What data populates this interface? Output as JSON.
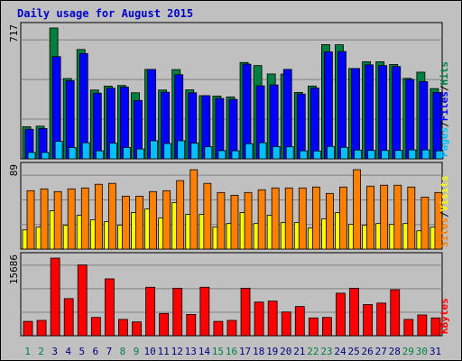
{
  "title": "Daily usage for August 2015",
  "colors": {
    "hits": "#008040",
    "files": "#0000ff",
    "pages": "#00c0ff",
    "visits": "#ffff00",
    "sites": "#ff8000",
    "kbytes": "#ff0000",
    "weekday_label": "#000080",
    "weekend_label": "#008040"
  },
  "chart_data": [
    {
      "type": "bar",
      "panel": "top",
      "categories": [
        "1",
        "2",
        "3",
        "4",
        "5",
        "6",
        "7",
        "8",
        "9",
        "10",
        "11",
        "12",
        "13",
        "14",
        "15",
        "16",
        "17",
        "18",
        "19",
        "20",
        "21",
        "22",
        "23",
        "24",
        "25",
        "26",
        "27",
        "28",
        "29",
        "30",
        "31"
      ],
      "ymax_label": "717",
      "ylim": [
        0,
        717
      ],
      "series": [
        {
          "name": "Hits",
          "values": [
            176,
            179,
            717,
            440,
            599,
            377,
            398,
            402,
            362,
            490,
            377,
            489,
            378,
            346,
            344,
            339,
            528,
            511,
            465,
            464,
            364,
            399,
            626,
            625,
            495,
            532,
            532,
            517,
            441,
            475,
            385
          ]
        },
        {
          "name": "Files",
          "values": [
            162,
            166,
            560,
            428,
            577,
            360,
            387,
            393,
            320,
            490,
            365,
            461,
            362,
            346,
            331,
            326,
            519,
            400,
            405,
            490,
            355,
            388,
            586,
            588,
            495,
            515,
            511,
            506,
            435,
            423,
            364
          ]
        },
        {
          "name": "Pages",
          "values": [
            35,
            35,
            96,
            62,
            88,
            44,
            86,
            62,
            54,
            99,
            84,
            99,
            86,
            66,
            45,
            44,
            83,
            88,
            67,
            66,
            44,
            43,
            68,
            63,
            48,
            46,
            46,
            46,
            49,
            49,
            44
          ]
        }
      ],
      "legend": [
        "Pages",
        "/",
        "Files",
        "/",
        "Hits"
      ]
    },
    {
      "type": "bar",
      "panel": "middle",
      "categories": [
        "1",
        "2",
        "3",
        "4",
        "5",
        "6",
        "7",
        "8",
        "9",
        "10",
        "11",
        "12",
        "13",
        "14",
        "15",
        "16",
        "17",
        "18",
        "19",
        "20",
        "21",
        "22",
        "23",
        "24",
        "25",
        "26",
        "27",
        "28",
        "29",
        "30",
        "31"
      ],
      "ymax_label": "89",
      "ylim": [
        0,
        89
      ],
      "series": [
        {
          "name": "Visits",
          "values": [
            21,
            24,
            42,
            26,
            37,
            32,
            30,
            26,
            40,
            44,
            34,
            51,
            38,
            38,
            24,
            28,
            40,
            28,
            37,
            29,
            29,
            23,
            33,
            40,
            27,
            26,
            28,
            27,
            28,
            20,
            24
          ]
        },
        {
          "name": "Sites",
          "values": [
            64,
            66,
            63,
            66,
            67,
            71,
            72,
            58,
            58,
            63,
            64,
            75,
            87,
            72,
            62,
            59,
            62,
            65,
            67,
            67,
            67,
            68,
            61,
            68,
            87,
            69,
            70,
            70,
            68,
            57,
            62
          ]
        }
      ],
      "legend": [
        "Sites",
        "/",
        "Visits"
      ]
    },
    {
      "type": "bar",
      "panel": "bottom",
      "categories": [
        "1",
        "2",
        "3",
        "4",
        "5",
        "6",
        "7",
        "8",
        "9",
        "10",
        "11",
        "12",
        "13",
        "14",
        "15",
        "16",
        "17",
        "18",
        "19",
        "20",
        "21",
        "22",
        "23",
        "24",
        "25",
        "26",
        "27",
        "28",
        "29",
        "30",
        "31"
      ],
      "ymax_label": "15686",
      "ylim": [
        0,
        15686
      ],
      "series": [
        {
          "name": "KBytes",
          "values": [
            2900,
            3100,
            15686,
            7500,
            14300,
            3700,
            11500,
            3300,
            2800,
            9800,
            4500,
            9600,
            4300,
            9800,
            2900,
            3100,
            9600,
            6800,
            7000,
            4800,
            5900,
            3600,
            3700,
            8600,
            9600,
            6300,
            6600,
            9300,
            3300,
            4200,
            3600
          ]
        }
      ],
      "legend": [
        "KBytes"
      ]
    }
  ],
  "weekend_days": [
    "1",
    "2",
    "8",
    "9",
    "15",
    "16",
    "22",
    "23",
    "29",
    "30"
  ]
}
